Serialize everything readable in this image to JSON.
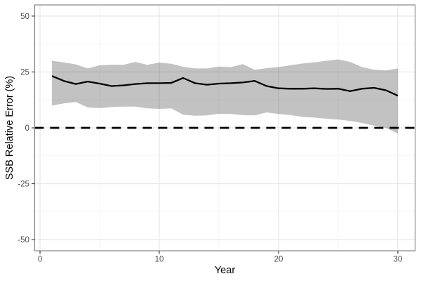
{
  "chart_data": {
    "type": "line",
    "title": "",
    "xlabel": "Year",
    "ylabel": "SSB Relative Error (%)",
    "x": [
      1,
      2,
      3,
      4,
      5,
      6,
      7,
      8,
      9,
      10,
      11,
      12,
      13,
      14,
      15,
      16,
      17,
      18,
      19,
      20,
      21,
      22,
      23,
      24,
      25,
      26,
      27,
      28,
      29,
      30
    ],
    "series": [
      {
        "name": "median",
        "style": "solid-line",
        "values": [
          23.2,
          21.0,
          19.6,
          20.7,
          19.8,
          18.7,
          19.0,
          19.6,
          20.0,
          20.0,
          20.1,
          22.3,
          20.0,
          19.3,
          19.8,
          20.0,
          20.3,
          21.0,
          18.7,
          17.7,
          17.5,
          17.5,
          17.7,
          17.4,
          17.5,
          16.4,
          17.5,
          17.9,
          16.8,
          14.4
        ]
      },
      {
        "name": "ribbon_upper",
        "style": "band-edge",
        "values": [
          30.0,
          29.3,
          28.4,
          26.6,
          28.0,
          28.2,
          28.2,
          29.5,
          28.2,
          29.2,
          28.7,
          27.3,
          26.6,
          26.6,
          27.4,
          27.2,
          28.5,
          26.0,
          26.7,
          27.2,
          28.0,
          28.8,
          29.3,
          30.0,
          30.6,
          29.5,
          27.2,
          26.0,
          25.7,
          26.6
        ]
      },
      {
        "name": "ribbon_lower",
        "style": "band-edge",
        "values": [
          10.0,
          10.9,
          11.6,
          9.1,
          8.8,
          9.3,
          9.5,
          9.5,
          8.7,
          8.5,
          8.7,
          5.9,
          5.4,
          5.6,
          6.3,
          6.2,
          5.7,
          5.6,
          6.9,
          6.2,
          5.7,
          4.9,
          4.6,
          4.1,
          3.7,
          3.1,
          2.2,
          1.0,
          0.0,
          -2.6
        ]
      }
    ],
    "reference_lines": [
      {
        "axis": "y",
        "value": 0,
        "style": "dashed"
      }
    ],
    "x_ticks": {
      "major": [
        0,
        10,
        20,
        30
      ],
      "minor": [
        5,
        15,
        25
      ],
      "major_labels": [
        "0",
        "10",
        "20",
        "30"
      ]
    },
    "y_ticks": {
      "major": [
        50,
        25,
        0,
        -25,
        -50
      ],
      "minor": [
        37.5,
        12.5,
        -12.5,
        -37.5
      ],
      "major_labels": [
        "50",
        "25",
        "0",
        "-25",
        "-50"
      ]
    },
    "xlim": [
      -0.45,
      31.45
    ],
    "ylim": [
      -55,
      55
    ],
    "grid": true,
    "legend": "none",
    "colors": {
      "ribbon": "rgba(0,0,0,0.24)",
      "median_line": "#000000",
      "zero_line": "#000000",
      "grid_major": "#e6e6e6",
      "grid_minor": "#f2f2f2",
      "panel_border": "#858585",
      "panel_background": "#ffffff",
      "tick_mark": "#333333",
      "tick_label": "#4d4d4d",
      "axis_title": "#000000"
    }
  }
}
